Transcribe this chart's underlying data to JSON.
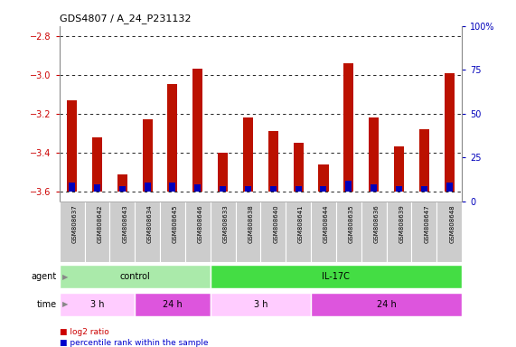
{
  "title": "GDS4807 / A_24_P231132",
  "samples": [
    "GSM808637",
    "GSM808642",
    "GSM808643",
    "GSM808634",
    "GSM808645",
    "GSM808646",
    "GSM808633",
    "GSM808638",
    "GSM808640",
    "GSM808641",
    "GSM808644",
    "GSM808635",
    "GSM808636",
    "GSM808639",
    "GSM808647",
    "GSM808648"
  ],
  "log2_values": [
    -3.13,
    -3.32,
    -3.51,
    -3.23,
    -3.05,
    -2.97,
    -3.4,
    -3.22,
    -3.29,
    -3.35,
    -3.46,
    -2.94,
    -3.22,
    -3.37,
    -3.28,
    -2.99
  ],
  "percentile_values": [
    5,
    4,
    3,
    5,
    5,
    4,
    3,
    3,
    3,
    3,
    3,
    6,
    4,
    3,
    3,
    5
  ],
  "ylim_left": [
    -3.65,
    -2.75
  ],
  "ylim_right": [
    0,
    100
  ],
  "yticks_left": [
    -3.6,
    -3.4,
    -3.2,
    -3.0,
    -2.8
  ],
  "yticks_right": [
    0,
    25,
    50,
    75,
    100
  ],
  "bar_bottom": -3.6,
  "agent_groups": [
    {
      "label": "control",
      "start": 0,
      "end": 6,
      "color": "#aaeaaa"
    },
    {
      "label": "IL-17C",
      "start": 6,
      "end": 16,
      "color": "#44dd44"
    }
  ],
  "time_groups": [
    {
      "label": "3 h",
      "start": 0,
      "end": 3,
      "color": "#ffccff"
    },
    {
      "label": "24 h",
      "start": 3,
      "end": 6,
      "color": "#dd55dd"
    },
    {
      "label": "3 h",
      "start": 6,
      "end": 10,
      "color": "#ffccff"
    },
    {
      "label": "24 h",
      "start": 10,
      "end": 16,
      "color": "#dd55dd"
    }
  ],
  "legend_items": [
    {
      "label": "log2 ratio",
      "color": "#cc0000"
    },
    {
      "label": "percentile rank within the sample",
      "color": "#0000cc"
    }
  ],
  "background_color": "#ffffff",
  "bar_color": "#bb1100",
  "percentile_color": "#0000bb",
  "tick_label_color_left": "#cc0000",
  "tick_label_color_right": "#0000bb",
  "grid_color": "#000000",
  "sample_bg_color": "#cccccc",
  "bar_width": 0.4,
  "pct_bar_width": 0.25
}
